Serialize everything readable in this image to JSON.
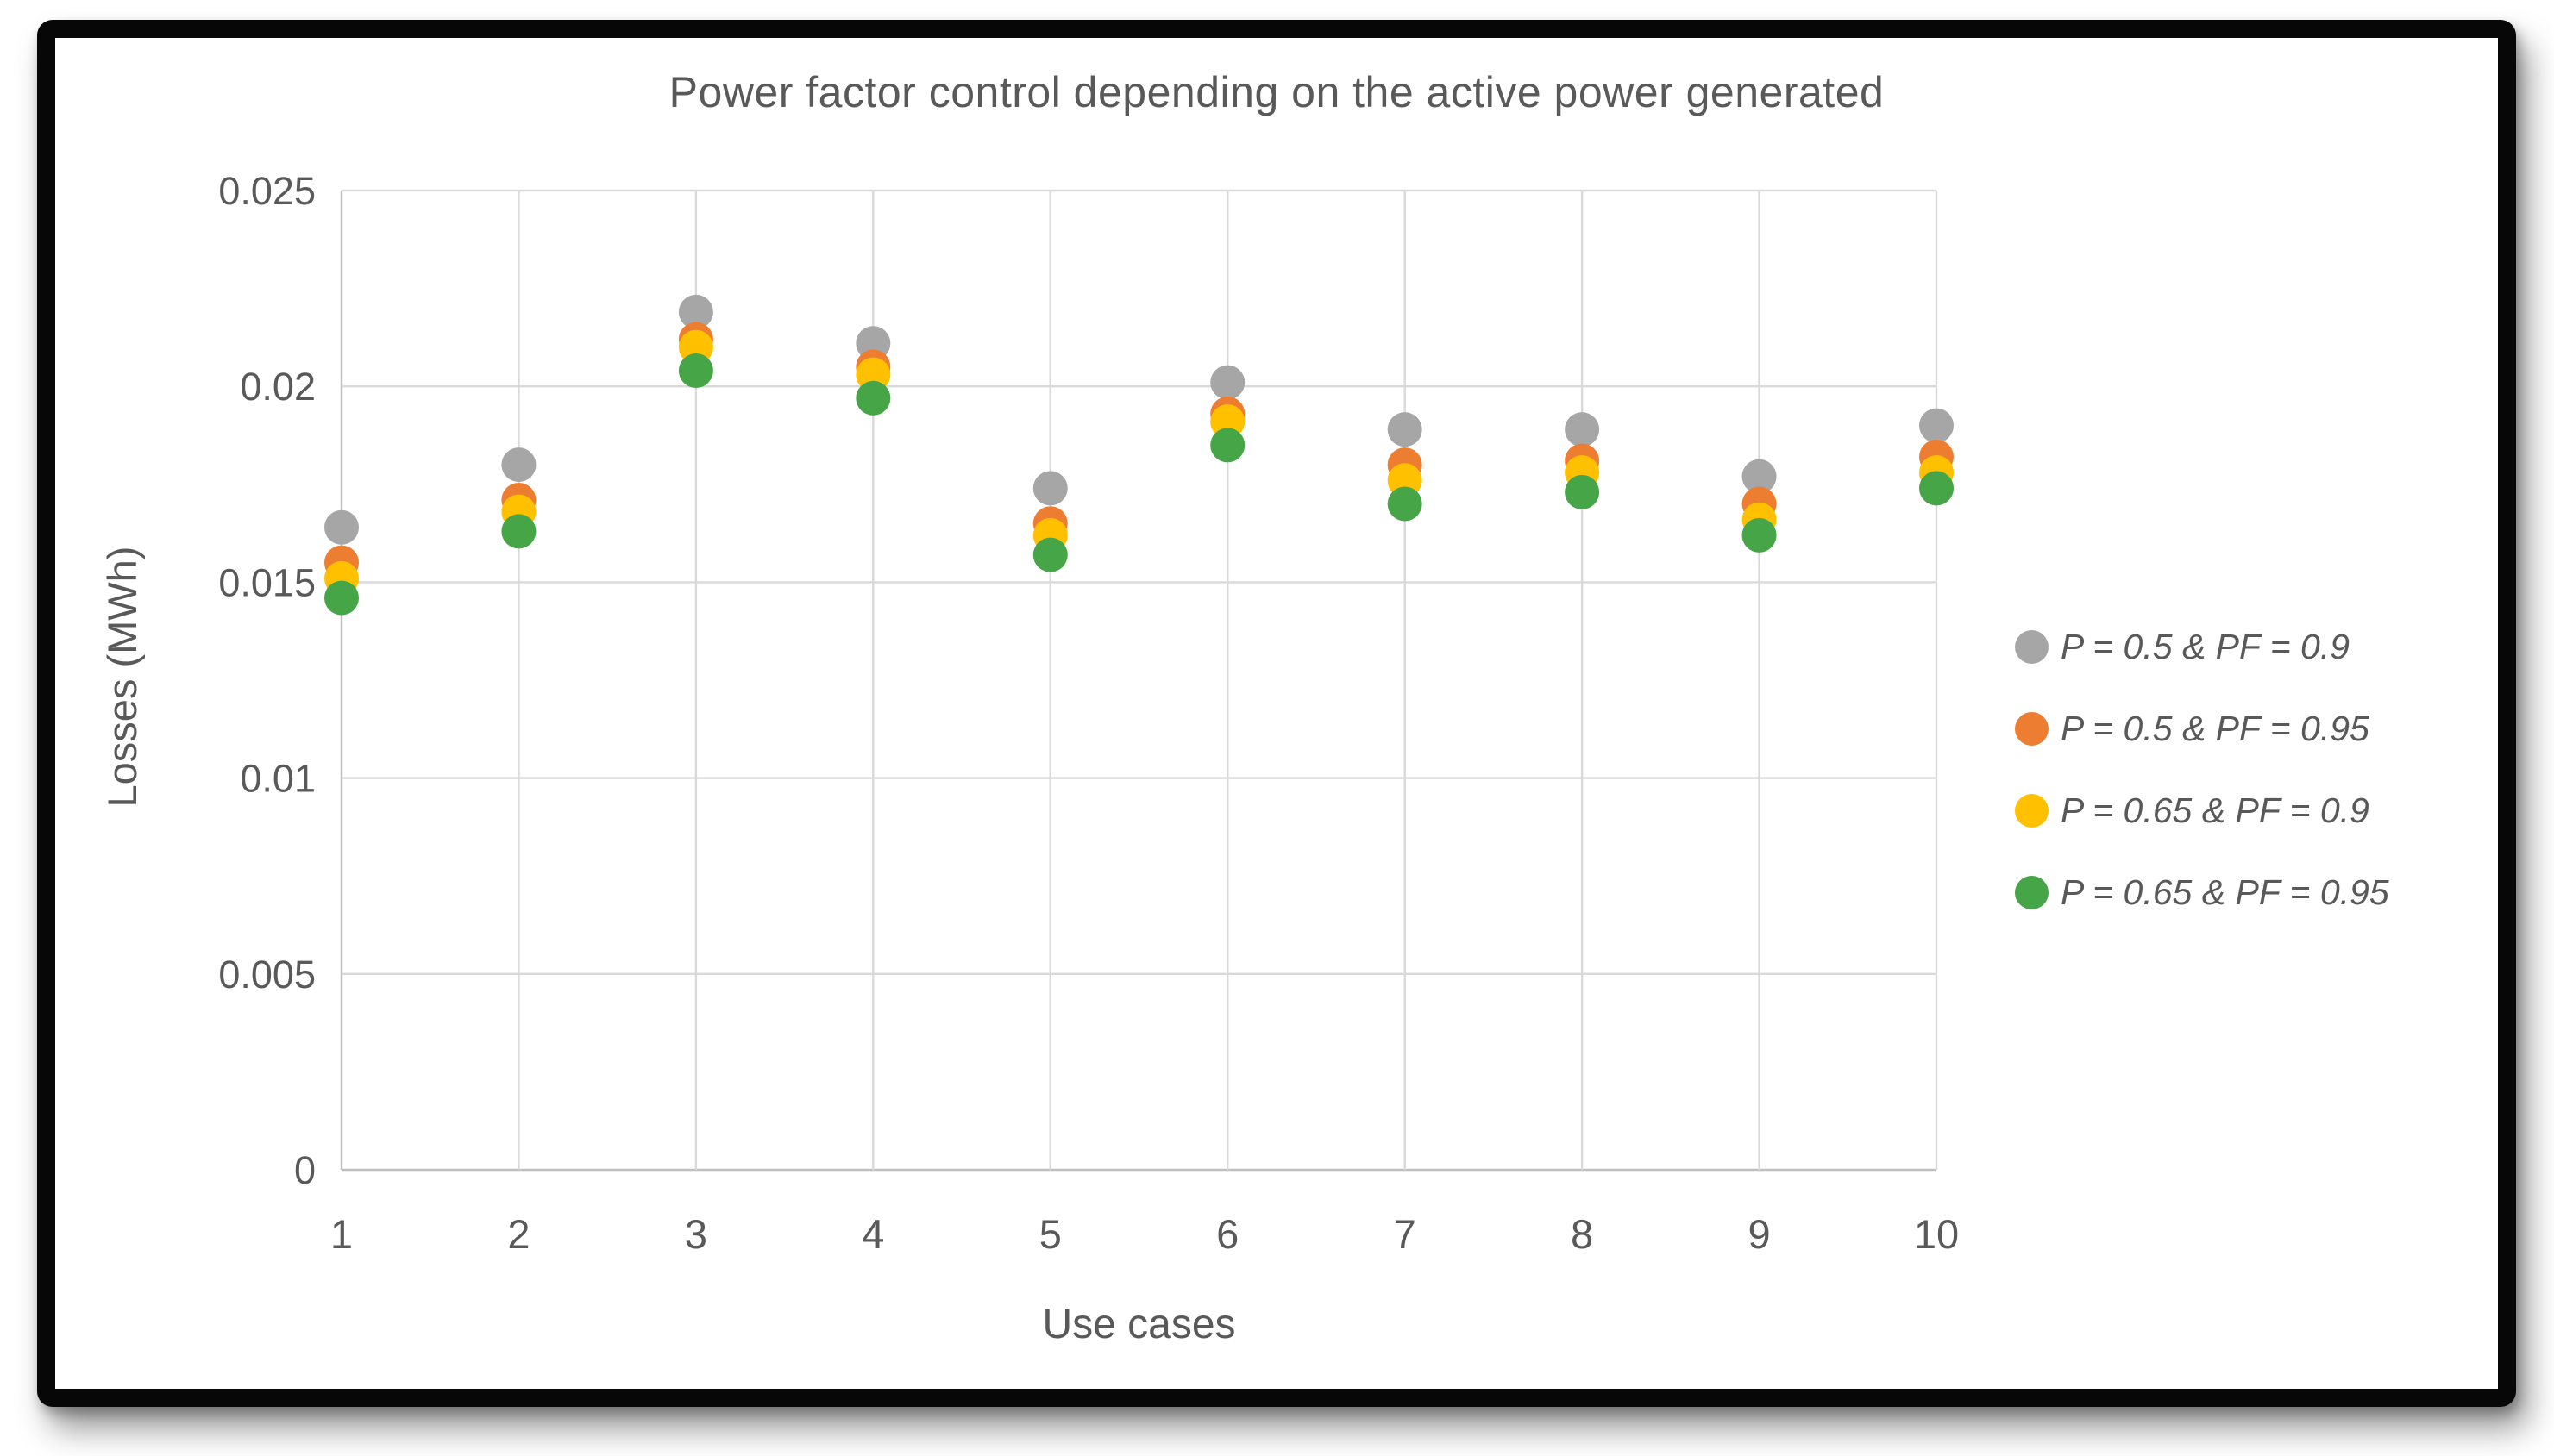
{
  "chart_data": {
    "type": "scatter",
    "title": "Power factor control depending on the active power generated",
    "xlabel": "Use cases",
    "ylabel": "Losses (MWh)",
    "categories": [
      1,
      2,
      3,
      4,
      5,
      6,
      7,
      8,
      9,
      10
    ],
    "xlim": [
      1,
      10
    ],
    "ylim": [
      0,
      0.025
    ],
    "y_ticks": [
      0,
      0.005,
      0.01,
      0.015,
      0.02,
      0.025
    ],
    "y_tick_labels": [
      "0",
      "0.005",
      "0.01",
      "0.015",
      "0.02",
      "0.025"
    ],
    "grid": true,
    "legend_position": "right",
    "series": [
      {
        "name": "P = 0.5 & PF = 0.9",
        "color": "#A6A6A6",
        "values": [
          0.0164,
          0.018,
          0.0219,
          0.0211,
          0.0174,
          0.0201,
          0.0189,
          0.0189,
          0.0177,
          0.019
        ]
      },
      {
        "name": "P = 0.5 & PF = 0.95",
        "color": "#ED7D31",
        "values": [
          0.0155,
          0.0171,
          0.0212,
          0.0205,
          0.0165,
          0.0193,
          0.018,
          0.0181,
          0.017,
          0.0182
        ]
      },
      {
        "name": "P = 0.65 & PF = 0.9",
        "color": "#FFC000",
        "values": [
          0.0151,
          0.0168,
          0.021,
          0.0203,
          0.0162,
          0.0191,
          0.0176,
          0.0178,
          0.0166,
          0.0178
        ]
      },
      {
        "name": "P = 0.65 & PF = 0.95",
        "color": "#46A546",
        "values": [
          0.0146,
          0.0163,
          0.0204,
          0.0197,
          0.0157,
          0.0185,
          0.017,
          0.0173,
          0.0162,
          0.0174
        ]
      }
    ],
    "style": {
      "text_color": "#595959",
      "gridline_color": "#D9D9D9",
      "axis_color": "#BFBFBF",
      "frame_color": "#070707",
      "background_color": "#FFFFFF"
    }
  }
}
